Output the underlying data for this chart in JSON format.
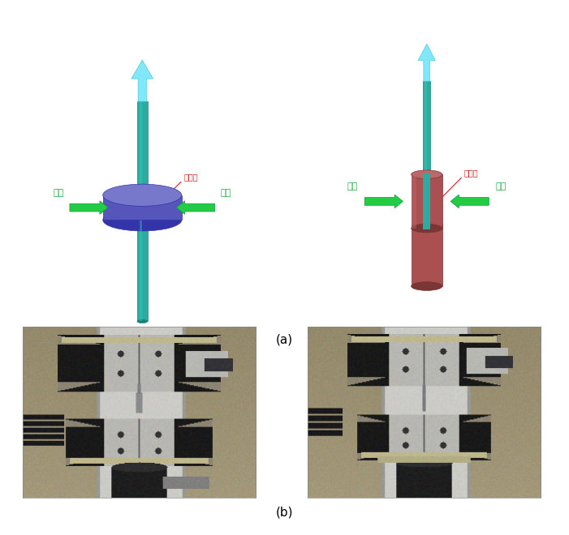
{
  "fig_width": 7.01,
  "fig_height": 6.6,
  "dpi": 100,
  "bg_color": "#ffffff",
  "teal_color": "#2aada0",
  "teal_dark": "#1a8078",
  "teal_light": "#40c8b8",
  "blue_purple": "#5555bb",
  "blue_purple_rim": "#7777cc",
  "blue_purple_dark": "#3333aa",
  "red_brown": "#aa5050",
  "red_brown_light": "#bb6868",
  "red_brown_dark": "#7a3535",
  "cyan_arrow": "#80e8f8",
  "cyan_arrow_edge": "#50c8e8",
  "green_arrow": "#22cc44",
  "green_arrow_edge": "#119933",
  "label_green": "#22aa44",
  "label_red": "#cc2222",
  "label_a": "(a)",
  "label_b": "(b)",
  "text_gojung": "고정",
  "text_yongjeopbu": "용접부",
  "diag1_xlim": [
    0,
    10
  ],
  "diag1_ylim": [
    0,
    15
  ],
  "diag2_xlim": [
    0,
    10
  ],
  "diag2_ylim": [
    0,
    15
  ]
}
